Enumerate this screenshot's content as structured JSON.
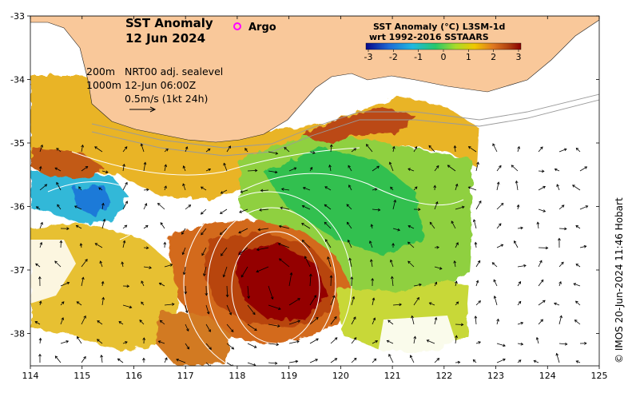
{
  "map": {
    "title_line1": "SST Anomaly",
    "title_line2": "12 Jun 2024",
    "argo_label": "Argo",
    "argo_color": "#ff00ff",
    "legend": {
      "title_line1": "SST Anomaly (°C) L3SM-1d",
      "title_line2": "wrt 1992-2016 SSTAARS",
      "ticks": [
        "-3",
        "-2",
        "-1",
        "0",
        "1",
        "2",
        "3"
      ],
      "colors": [
        "#08088a",
        "#1e6bd6",
        "#1fb8e0",
        "#28c86a",
        "#a8dc28",
        "#f0c800",
        "#e07820",
        "#b04010",
        "#8b0000"
      ]
    },
    "info": {
      "depth1": "200m",
      "depth2": "1000m",
      "line1": "NRT00 adj. sealevel",
      "line2": "12-Jun 06:00Z",
      "scale": "0.5m/s (1kt 24h)"
    },
    "x_ticks": [
      "114",
      "115",
      "116",
      "117",
      "118",
      "119",
      "120",
      "121",
      "122",
      "123",
      "124",
      "125"
    ],
    "y_ticks": [
      "-33",
      "-34",
      "-35",
      "-36",
      "-37",
      "-38"
    ],
    "credit": "© IMOS 20-Jun-2024 11:46 Hobart",
    "land_color": "#f9c89a"
  }
}
